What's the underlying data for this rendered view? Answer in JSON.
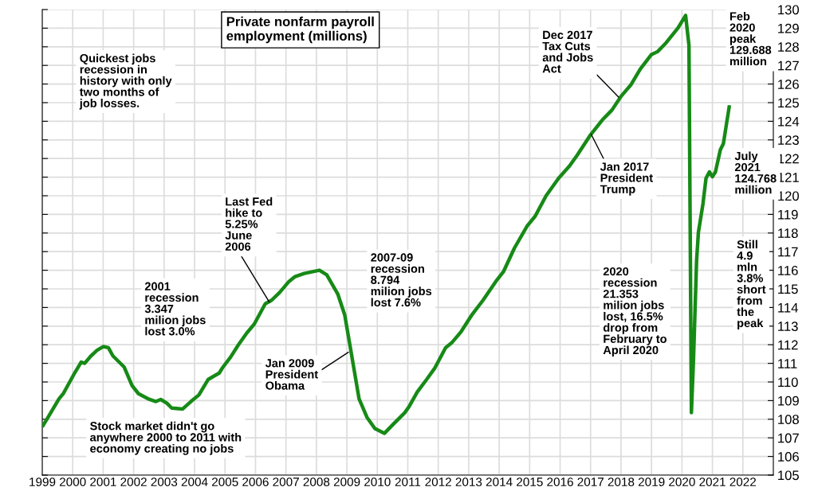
{
  "chart_data": {
    "type": "line",
    "title": "Private nonfarm payroll\nemployment (millions)",
    "x": [
      1999.03,
      1999.19,
      1999.55,
      1999.7,
      1999.8,
      2000.07,
      2000.28,
      2000.39,
      2000.6,
      2000.8,
      2001.0,
      2001.17,
      2001.32,
      2001.69,
      2001.95,
      2002.16,
      2002.47,
      2002.73,
      2002.89,
      2003.09,
      2003.25,
      2003.61,
      2003.88,
      2004.14,
      2004.45,
      2004.81,
      2004.92,
      2005.18,
      2005.44,
      2005.7,
      2005.96,
      2006.32,
      2006.53,
      2006.79,
      2007.1,
      2007.3,
      2007.6,
      2008.1,
      2008.34,
      2008.7,
      2008.93,
      2009.14,
      2009.4,
      2009.66,
      2009.92,
      2010.23,
      2010.54,
      2010.9,
      2011.05,
      2011.31,
      2011.62,
      2011.88,
      2012.24,
      2012.44,
      2012.75,
      2013.11,
      2013.47,
      2013.89,
      2014.14,
      2014.5,
      2014.92,
      2015.18,
      2015.54,
      2015.95,
      2016.31,
      2016.57,
      2016.98,
      2017.39,
      2017.7,
      2018.01,
      2018.32,
      2018.63,
      2018.99,
      2019.2,
      2019.45,
      2019.87,
      2020.12,
      2020.23,
      2020.31,
      2020.38,
      2020.48,
      2020.54,
      2020.69,
      2020.79,
      2020.9,
      2021.0,
      2021.1,
      2021.26,
      2021.36,
      2021.55
    ],
    "series": [
      {
        "color": "#168a16",
        "values": [
          107.67,
          108.1,
          109.1,
          109.4,
          109.7,
          110.5,
          111.07,
          111.0,
          111.4,
          111.7,
          111.9,
          111.84,
          111.4,
          110.8,
          109.8,
          109.37,
          109.1,
          108.95,
          109.06,
          108.86,
          108.6,
          108.55,
          108.95,
          109.3,
          110.14,
          110.48,
          110.77,
          111.33,
          112.0,
          112.6,
          113.11,
          114.2,
          114.39,
          114.8,
          115.4,
          115.66,
          115.83,
          116.0,
          115.75,
          114.73,
          113.6,
          111.6,
          109.1,
          108.1,
          107.5,
          107.24,
          107.76,
          108.35,
          108.7,
          109.46,
          110.14,
          110.73,
          111.84,
          112.1,
          112.7,
          113.62,
          114.39,
          115.4,
          115.92,
          117.19,
          118.38,
          118.9,
          120.0,
          120.94,
          121.6,
          122.2,
          123.23,
          124.08,
          124.6,
          125.36,
          125.95,
          126.8,
          127.57,
          127.74,
          128.16,
          129.01,
          129.688,
          128.08,
          108.35,
          111.24,
          116.5,
          118.04,
          119.57,
          120.94,
          121.28,
          121.02,
          121.28,
          122.47,
          122.8,
          124.768
        ]
      }
    ],
    "xlim": [
      1999,
      2023
    ],
    "xticks": [
      1999,
      2000,
      2001,
      2002,
      2003,
      2004,
      2005,
      2006,
      2007,
      2008,
      2009,
      2010,
      2011,
      2012,
      2013,
      2014,
      2015,
      2016,
      2017,
      2018,
      2019,
      2020,
      2021,
      2022
    ],
    "ylim": [
      105,
      130
    ],
    "yticks": [
      105,
      106,
      107,
      108,
      109,
      110,
      111,
      112,
      113,
      114,
      115,
      116,
      117,
      118,
      119,
      120,
      121,
      122,
      123,
      124,
      125,
      126,
      127,
      128,
      129,
      130
    ],
    "grid": true,
    "marker": "none",
    "line_style": "solid",
    "annotations": [
      "Quickest jobs\nrecession in\nhistory with only\ntwo months of\njob losses.",
      "2001\nrecession\n3.347\nmilion jobs\nlost 3.0%",
      {
        "text": "Last Fed\nhike to\n5.25%\nJune\n2006",
        "x": 2006.45,
        "y": 114.3
      },
      "2007-09\nrecession\n8.794\nmilion jobs\nlost 7.6%",
      {
        "text": "Jan 2009\nPresident\nObama",
        "x": 2009.05,
        "y": 111.6
      },
      "Stock market didn't go\nanywhere 2000 to 2011 with\neconomy creating no jobs",
      {
        "text": "Dec 2017\nTax Cuts\nand Jobs\nAct",
        "x": 2017.92,
        "y": 125.3
      },
      {
        "text": "Jan 2017\nPresident\nTrump",
        "x": 2017.02,
        "y": 123.3
      },
      "2020\nrecession\n21.353\nmilion jobs\nlost, 16.5%\ndrop from\nFebruary to\nApril 2020",
      "Feb\n2020\npeak\n129.688\nmillion",
      "July\n2021\n124.768\nmillion",
      "Still\n4.9\nmln\n3.8%\nshort\nfrom\nthe\npeak"
    ]
  }
}
